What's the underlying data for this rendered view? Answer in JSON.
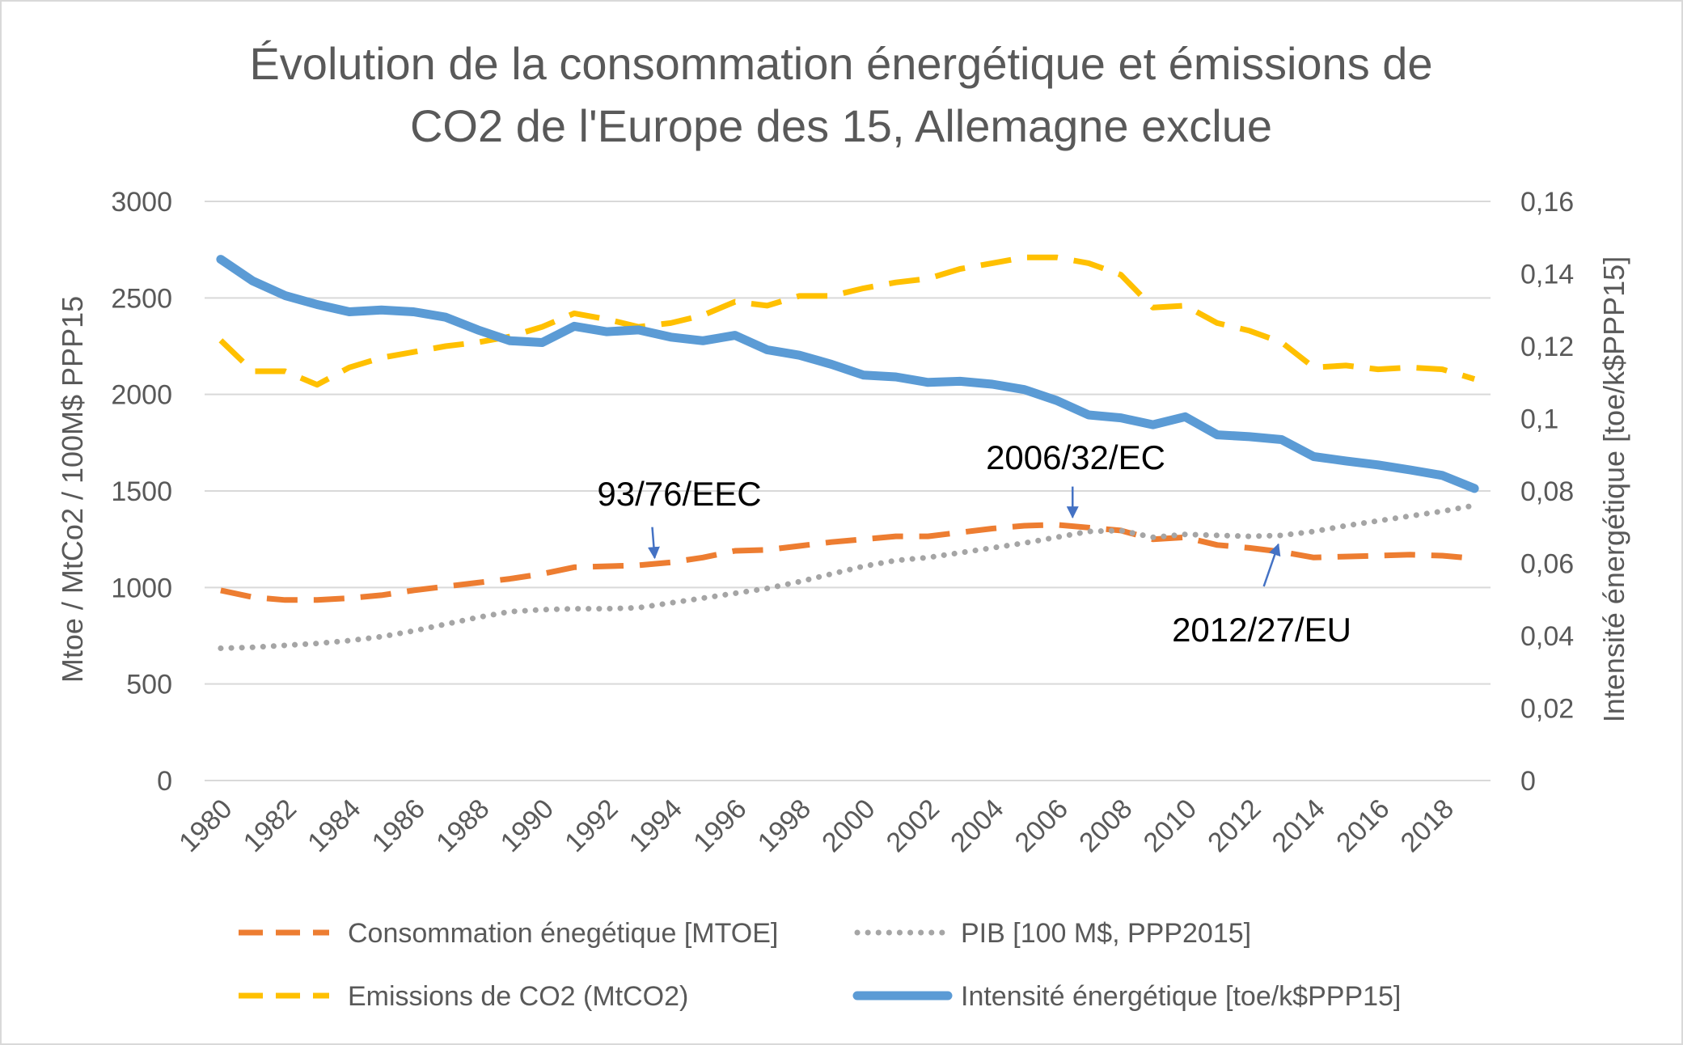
{
  "chart_data": {
    "type": "line",
    "title": [
      "Évolution de la consommation énergétique et émissions de",
      "CO2 de l'Europe des 15, Allemagne exclue"
    ],
    "ylabel": "Mtoe / MtCo2 / 100M$ PPP15",
    "y2label": "Intensité énergétique [toe/k$PPP15]",
    "ylim": [
      0,
      3000
    ],
    "y2lim": [
      0,
      0.16
    ],
    "y_ticks": [
      "0",
      "500",
      "1000",
      "1500",
      "2000",
      "2500",
      "3000"
    ],
    "y2_ticks": [
      "0",
      "0,02",
      "0,04",
      "0,06",
      "0,08",
      "0,1",
      "0,12",
      "0,14",
      "0,16"
    ],
    "x_tick_labels": [
      "1980",
      "1982",
      "1984",
      "1986",
      "1988",
      "1990",
      "1992",
      "1994",
      "1996",
      "1998",
      "2000",
      "2002",
      "2004",
      "2006",
      "2008",
      "2010",
      "2012",
      "2014",
      "2016",
      "2018"
    ],
    "x": [
      1980,
      1981,
      1982,
      1983,
      1984,
      1985,
      1986,
      1987,
      1988,
      1989,
      1990,
      1991,
      1992,
      1993,
      1994,
      1995,
      1996,
      1997,
      1998,
      1999,
      2000,
      2001,
      2002,
      2003,
      2004,
      2005,
      2006,
      2007,
      2008,
      2009,
      2010,
      2011,
      2012,
      2013,
      2014,
      2015,
      2016,
      2017,
      2018,
      2019
    ],
    "grid": true,
    "legend_position": "bottom",
    "series": [
      {
        "name": "Consommation énegétique [MTOE]",
        "axis": "left",
        "color": "#ED7D31",
        "style": "dashed",
        "values": [
          985,
          950,
          935,
          935,
          945,
          960,
          985,
          1005,
          1025,
          1045,
          1070,
          1105,
          1110,
          1115,
          1130,
          1155,
          1190,
          1195,
          1215,
          1235,
          1250,
          1265,
          1265,
          1285,
          1305,
          1320,
          1325,
          1310,
          1295,
          1250,
          1260,
          1220,
          1205,
          1185,
          1155,
          1160,
          1165,
          1170,
          1165,
          1150
        ]
      },
      {
        "name": "PIB [100 M$, PPP2015]",
        "axis": "left",
        "color": "#A5A5A5",
        "style": "dotted",
        "values": [
          685,
          690,
          700,
          710,
          725,
          745,
          775,
          810,
          845,
          875,
          885,
          890,
          890,
          895,
          920,
          945,
          970,
          995,
          1030,
          1070,
          1110,
          1140,
          1155,
          1180,
          1205,
          1230,
          1260,
          1290,
          1295,
          1260,
          1275,
          1270,
          1265,
          1270,
          1290,
          1320,
          1345,
          1370,
          1395,
          1425
        ]
      },
      {
        "name": "Emissions de CO2 (MtCO2)",
        "axis": "left",
        "color": "#FFC000",
        "style": "dashed",
        "values": [
          2280,
          2120,
          2120,
          2050,
          2140,
          2190,
          2220,
          2250,
          2270,
          2300,
          2350,
          2420,
          2390,
          2350,
          2370,
          2410,
          2480,
          2460,
          2510,
          2510,
          2550,
          2580,
          2600,
          2650,
          2680,
          2710,
          2710,
          2680,
          2620,
          2450,
          2460,
          2370,
          2330,
          2270,
          2140,
          2150,
          2130,
          2140,
          2130,
          2080
        ]
      },
      {
        "name": "Intensité énergétique [toe/k$PPP15]",
        "axis": "right",
        "color": "#5B9BD5",
        "style": "solid",
        "values": [
          0.144,
          0.138,
          0.134,
          0.1315,
          0.1295,
          0.13,
          0.1295,
          0.128,
          0.1245,
          0.1215,
          0.121,
          0.1255,
          0.124,
          0.1245,
          0.1225,
          0.1215,
          0.123,
          0.119,
          0.1175,
          0.115,
          0.112,
          0.1115,
          0.11,
          0.1103,
          0.1095,
          0.108,
          0.105,
          0.101,
          0.1002,
          0.0983,
          0.1005,
          0.0955,
          0.095,
          0.0942,
          0.0895,
          0.0883,
          0.0872,
          0.0858,
          0.0843,
          0.0807
        ]
      }
    ],
    "annotations": [
      {
        "text": "93/76/EEC",
        "year": 1993.5,
        "value": 1120
      },
      {
        "text": "2006/32/EC",
        "year": 2006.5,
        "value": 1330
      },
      {
        "text": "2012/27/EU",
        "year": 2012.9,
        "value": 1190
      }
    ]
  }
}
